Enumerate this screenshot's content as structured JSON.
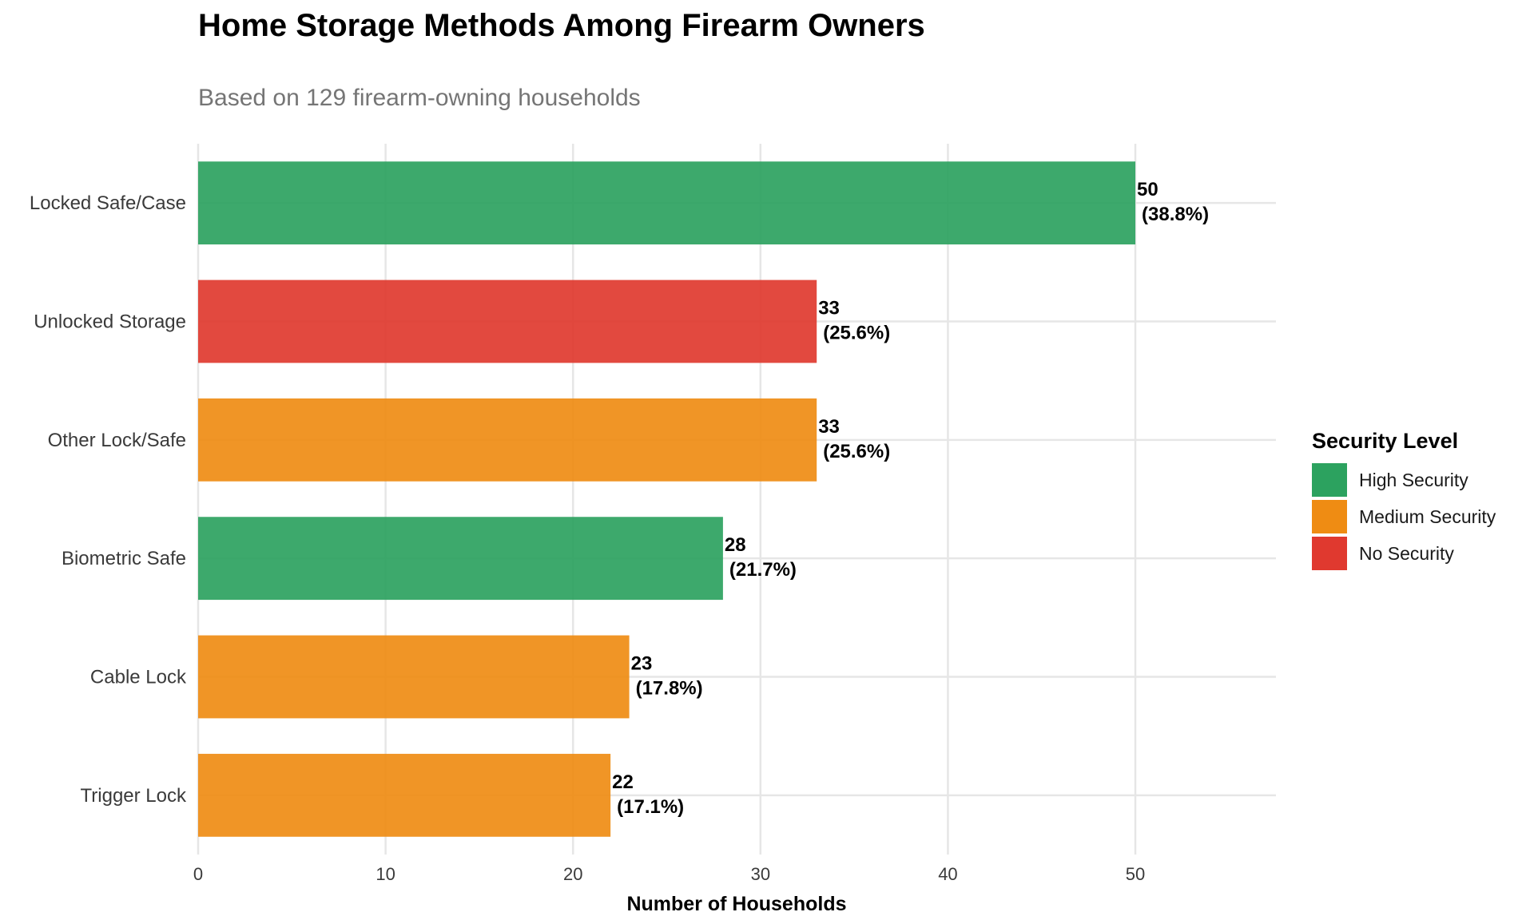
{
  "chart_data": {
    "type": "bar",
    "orientation": "horizontal",
    "title": "Home Storage Methods Among Firearm Owners",
    "subtitle": "Based on 129 firearm-owning households",
    "xlabel": "Number of Households",
    "ylabel": "",
    "xlim": [
      0,
      57.5
    ],
    "xticks": [
      0,
      10,
      20,
      30,
      40,
      50
    ],
    "grid": true,
    "legend": {
      "title": "Security Level",
      "placement": "right",
      "entries": [
        {
          "name": "High Security",
          "color": "#2ca25f"
        },
        {
          "name": "Medium Security",
          "color": "#ef8c13"
        },
        {
          "name": "No Security",
          "color": "#e0392f"
        }
      ]
    },
    "categories": [
      "Locked Safe/Case",
      "Unlocked Storage",
      "Other Lock/Safe",
      "Biometric Safe",
      "Cable Lock",
      "Trigger Lock"
    ],
    "values": [
      50,
      33,
      33,
      28,
      23,
      22
    ],
    "percent_labels": [
      "(38.8%)",
      "(25.6%)",
      "(25.6%)",
      "(21.7%)",
      "(17.8%)",
      "(17.1%)"
    ],
    "security_levels": [
      "High Security",
      "No Security",
      "Medium Security",
      "High Security",
      "Medium Security",
      "Medium Security"
    ]
  }
}
